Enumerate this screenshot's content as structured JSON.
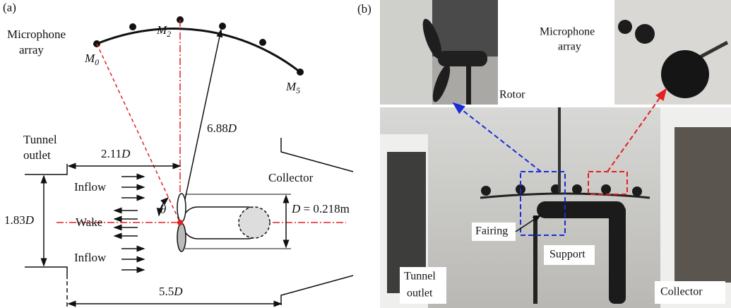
{
  "panel_a": {
    "label": "(a)",
    "microphone_array": [
      "Microphone",
      "array"
    ],
    "mics": [
      {
        "base": "M",
        "sub": "0"
      },
      {
        "base": "M",
        "sub": "2"
      },
      {
        "base": "M",
        "sub": "5"
      }
    ],
    "radius": {
      "number": "6.88",
      "unit": "D"
    },
    "offset": {
      "number": "2.11",
      "unit": "D"
    },
    "outlet_height": {
      "number": "1.83",
      "unit": "D"
    },
    "length": {
      "number": "5.5",
      "unit": "D"
    },
    "diameter": {
      "symbol": "D",
      "text": " = 0.218m"
    },
    "angle": "θ",
    "tunnel_outlet": [
      "Tunnel",
      "outlet"
    ],
    "collector": "Collector",
    "flow": [
      "Inflow",
      "Wake",
      "Inflow"
    ]
  },
  "panel_b": {
    "label": "(b)",
    "microphone_array": [
      "Microphone",
      "array"
    ],
    "rotor": "Rotor",
    "fairing": "Fairing",
    "support": "Support",
    "tunnel_outlet": [
      "Tunnel",
      "outlet"
    ],
    "collector": "Collector"
  }
}
